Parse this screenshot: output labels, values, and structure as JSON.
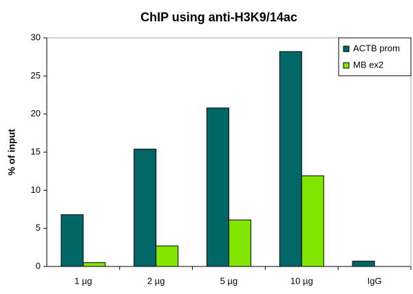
{
  "chart_data": {
    "type": "bar",
    "title": "ChIP using anti-H3K9/14ac",
    "y_label": "% of input",
    "categories": [
      "1 µg",
      "2 µg",
      "5 µg",
      "10 µg",
      "IgG"
    ],
    "series": [
      {
        "name": "ACTB prom",
        "color": "#006666",
        "values": [
          6.8,
          15.4,
          20.8,
          28.2,
          0.7
        ]
      },
      {
        "name": "MB ex2",
        "color": "#80e600",
        "values": [
          0.5,
          2.7,
          6.1,
          11.9,
          0
        ]
      }
    ],
    "ylim": [
      0,
      30
    ],
    "yticks": [
      0,
      5,
      10,
      15,
      20,
      25,
      30
    ],
    "legend": "top-right"
  }
}
